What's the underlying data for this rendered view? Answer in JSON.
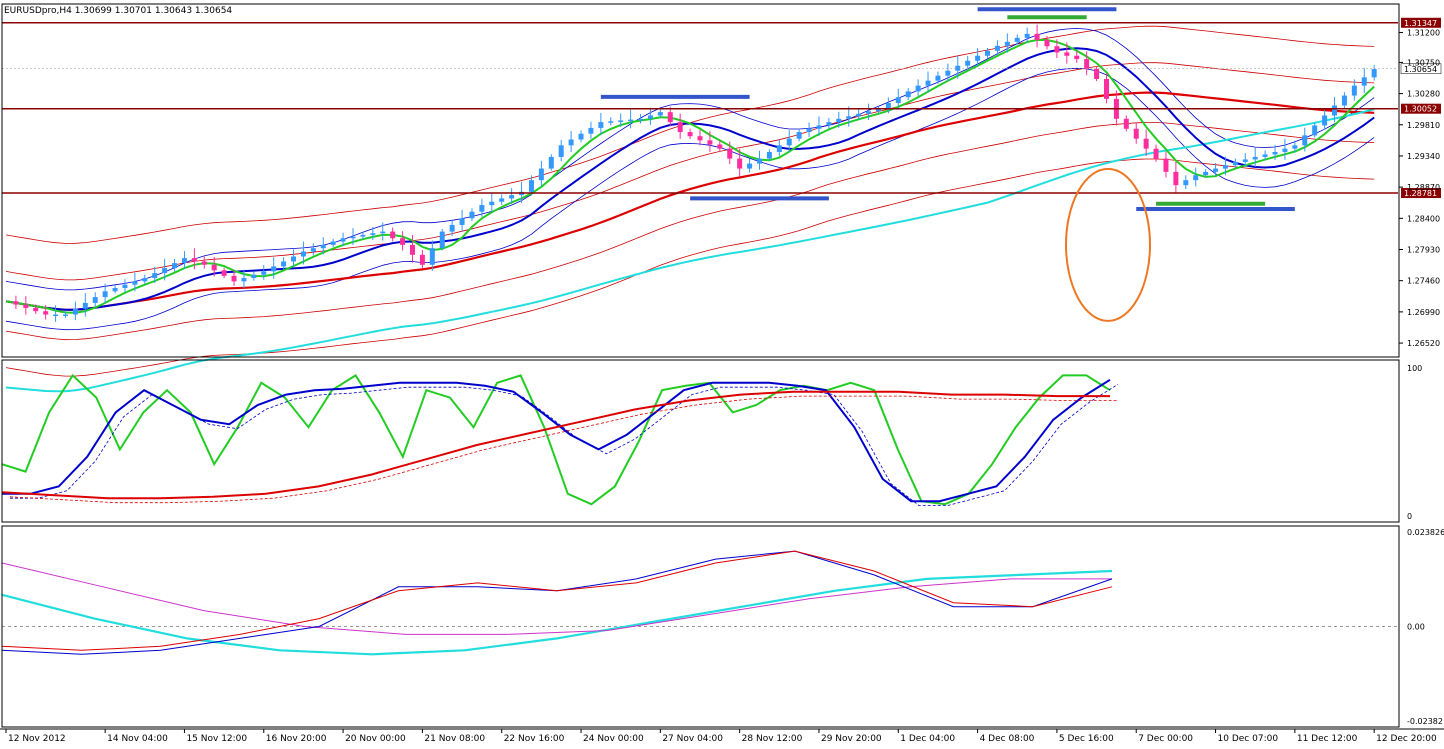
{
  "header": {
    "title": "EURUSDpro,H4  1.30699 1.30701 1.30643 1.30654"
  },
  "colors": {
    "background": "#ffffff",
    "bull": "#3399ff",
    "bear": "#ff2d9e",
    "green": "#22cc22",
    "blue": "#0000cc",
    "red": "#dd0000",
    "cyan": "#22dddd",
    "magenta": "#cc33cc",
    "orange": "#ee7722",
    "level_line": "#8b0000"
  },
  "chart_data": [
    {
      "type": "line",
      "pane": "price",
      "title": "",
      "ylim": [
        1.2631,
        1.3163
      ],
      "y_ticks": [
        "1.31200",
        "1.30750",
        "1.30280",
        "1.29810",
        "1.29340",
        "1.28870",
        "1.28400",
        "1.27930",
        "1.27460",
        "1.26990",
        "1.26520"
      ],
      "current_price": "1.30654",
      "levels": [
        {
          "price": 1.31347,
          "label": "1.31347"
        },
        {
          "price": 1.30052,
          "label": "1.30052"
        },
        {
          "price": 1.28781,
          "label": "1.28781"
        }
      ],
      "x_labels": [
        "12 Nov 2012",
        "14 Nov 04:00",
        "15 Nov 12:00",
        "16 Nov 20:00",
        "20 Nov 00:00",
        "21 Nov 08:00",
        "22 Nov 16:00",
        "24 Nov 00:00",
        "27 Nov 04:00",
        "28 Nov 12:00",
        "29 Nov 20:00",
        "1 Dec 04:00",
        "4 Dec 08:00",
        "5 Dec 16:00",
        "7 Dec 00:00",
        "10 Dec 07:00",
        "11 Dec 12:00",
        "12 Dec 20:00"
      ],
      "x_label_slots": [
        0,
        10,
        18,
        26,
        34,
        42,
        50,
        58,
        66,
        74,
        82,
        90,
        98,
        106,
        114,
        122,
        130,
        138
      ],
      "slots": 140,
      "anchors": [
        [
          0,
          1.2715
        ],
        [
          4,
          1.2695
        ],
        [
          6,
          1.2695
        ],
        [
          10,
          1.273
        ],
        [
          14,
          1.275
        ],
        [
          18,
          1.278
        ],
        [
          20,
          1.277
        ],
        [
          23,
          1.2745
        ],
        [
          26,
          1.276
        ],
        [
          30,
          1.279
        ],
        [
          34,
          1.281
        ],
        [
          38,
          1.282
        ],
        [
          40,
          1.28
        ],
        [
          42,
          1.277
        ],
        [
          44,
          1.282
        ],
        [
          48,
          1.286
        ],
        [
          52,
          1.288
        ],
        [
          56,
          1.295
        ],
        [
          60,
          1.2985
        ],
        [
          64,
          1.299
        ],
        [
          66,
          1.3
        ],
        [
          68,
          1.297
        ],
        [
          72,
          1.2945
        ],
        [
          74,
          1.2915
        ],
        [
          76,
          1.293
        ],
        [
          80,
          1.297
        ],
        [
          84,
          1.299
        ],
        [
          88,
          1.3005
        ],
        [
          92,
          1.304
        ],
        [
          96,
          1.307
        ],
        [
          100,
          1.31
        ],
        [
          103,
          1.3118
        ],
        [
          106,
          1.309
        ],
        [
          108,
          1.308
        ],
        [
          110,
          1.305
        ],
        [
          112,
          1.299
        ],
        [
          116,
          1.293
        ],
        [
          118,
          1.289
        ],
        [
          120,
          1.2905
        ],
        [
          124,
          1.2925
        ],
        [
          128,
          1.294
        ],
        [
          130,
          1.295
        ],
        [
          132,
          1.298
        ],
        [
          134,
          1.301
        ],
        [
          136,
          1.304
        ],
        [
          138,
          1.3065
        ]
      ],
      "trend_markers": [
        {
          "kind": "resistance",
          "slot_from": 60,
          "slot_to": 75,
          "price": 1.3023,
          "color": "#3355cc"
        },
        {
          "kind": "support",
          "slot_from": 69,
          "slot_to": 83,
          "price": 1.287,
          "color": "#3355cc"
        },
        {
          "kind": "resistance",
          "slot_from": 98,
          "slot_to": 112,
          "price": 1.3155,
          "color": "#3355cc"
        },
        {
          "kind": "resistance",
          "slot_from": 101,
          "slot_to": 109,
          "price": 1.3143,
          "color": "#33aa33"
        },
        {
          "kind": "support",
          "slot_from": 116,
          "slot_to": 127,
          "price": 1.2862,
          "color": "#33aa33"
        },
        {
          "kind": "support",
          "slot_from": 114,
          "slot_to": 130,
          "price": 1.2854,
          "color": "#3355cc"
        }
      ],
      "annotation": {
        "shape": "ellipse",
        "color": "#ee7722",
        "slot": 137,
        "price": 1.28
      }
    },
    {
      "type": "line",
      "pane": "oscillator",
      "ylim": [
        0,
        100
      ],
      "y_ticks": [
        "100",
        "0"
      ],
      "series": [
        {
          "color": "#22cc22",
          "values": [
            35,
            30,
            70,
            95,
            80,
            45,
            70,
            85,
            70,
            35,
            60,
            90,
            80,
            60,
            85,
            95,
            70,
            40,
            85,
            80,
            60,
            90,
            95,
            60,
            15,
            8,
            20,
            50,
            85,
            88,
            90,
            70,
            75,
            85,
            88,
            85,
            90,
            85,
            45,
            10,
            8,
            15,
            35,
            60,
            80,
            95,
            95,
            85
          ]
        },
        {
          "color": "#0000cc",
          "values": [
            15,
            15,
            20,
            40,
            70,
            85,
            75,
            65,
            62,
            75,
            82,
            85,
            86,
            88,
            90,
            90,
            90,
            88,
            84,
            70,
            55,
            45,
            55,
            70,
            85,
            90,
            90,
            90,
            88,
            85,
            60,
            25,
            10,
            10,
            15,
            20,
            40,
            65,
            80,
            92
          ]
        },
        {
          "color": "#dd0000",
          "values": [
            16,
            14,
            12,
            12,
            13,
            15,
            20,
            28,
            38,
            48,
            56,
            64,
            72,
            78,
            82,
            84,
            84,
            84,
            82,
            82,
            81,
            81
          ]
        }
      ]
    },
    {
      "type": "line",
      "pane": "histogram",
      "ylim": [
        -0.02382,
        0.02382
      ],
      "y_ticks": [
        "0.023826",
        "0.00",
        "-0.02382"
      ],
      "series": [
        {
          "color": "#22dddd",
          "values": [
            0.008,
            0.002,
            -0.003,
            -0.006,
            -0.007,
            -0.006,
            -0.003,
            0.001,
            0.005,
            0.009,
            0.012,
            0.013,
            0.014
          ]
        },
        {
          "color": "#cc33cc",
          "values": [
            0.016,
            0.01,
            0.004,
            0.0,
            -0.002,
            -0.002,
            -0.001,
            0.003,
            0.007,
            0.01,
            0.012,
            0.012
          ]
        },
        {
          "color": "#0000cc",
          "values": [
            -0.006,
            -0.007,
            -0.006,
            -0.003,
            0.0,
            0.01,
            0.01,
            0.009,
            0.012,
            0.017,
            0.019,
            0.013,
            0.005,
            0.005,
            0.012
          ]
        },
        {
          "color": "#dd0000",
          "values": [
            -0.005,
            -0.006,
            -0.005,
            -0.002,
            0.002,
            0.009,
            0.011,
            0.009,
            0.011,
            0.016,
            0.019,
            0.014,
            0.006,
            0.005,
            0.01
          ]
        }
      ]
    }
  ]
}
